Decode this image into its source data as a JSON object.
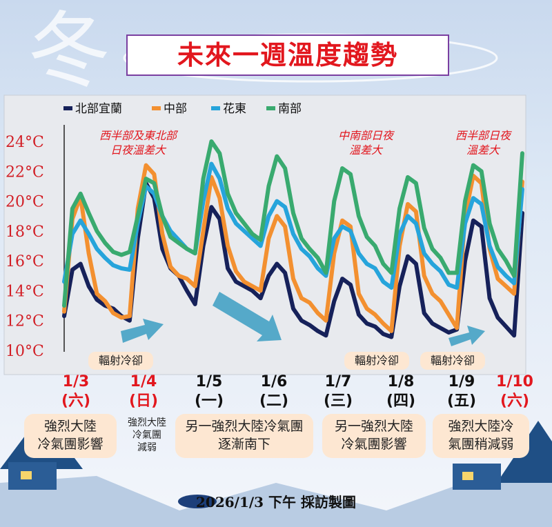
{
  "header": {
    "title": "未來一週溫度趨勢"
  },
  "chart_data": {
    "type": "line",
    "title": "未來一週溫度趨勢",
    "ylabel": "",
    "xlabel": "",
    "ylim": [
      10,
      24
    ],
    "yticks": [
      "24°C",
      "22°C",
      "20°C",
      "18°C",
      "16°C",
      "14°C",
      "12°C",
      "10°C"
    ],
    "ytick_values": [
      24,
      22,
      20,
      18,
      16,
      14,
      12,
      10
    ],
    "grid": false,
    "legend_position": "top-left",
    "x": [
      0,
      0.5,
      1,
      1.5,
      2,
      2.5,
      3,
      3.5,
      4,
      4.5,
      5,
      5.5,
      6,
      6.5,
      7,
      7.5,
      8,
      8.5,
      9,
      9.5,
      10,
      10.5,
      11,
      11.5,
      12,
      12.5,
      13,
      13.5,
      14,
      14.5,
      15,
      15.5,
      16,
      16.5,
      17,
      17.5,
      18,
      18.5,
      19,
      19.5,
      20,
      20.5,
      21,
      21.5,
      22,
      22.5,
      23,
      23.5,
      24,
      24.5,
      25,
      25.5,
      26,
      26.5,
      27,
      27.5,
      28
    ],
    "series": [
      {
        "name": "北部宜蘭",
        "color": "#16215a",
        "values": [
          12.3,
          15.4,
          15.8,
          14.3,
          13.4,
          13.0,
          12.8,
          12.3,
          12.0,
          17.5,
          21.2,
          20.2,
          16.8,
          15.5,
          15.0,
          14.0,
          13.1,
          17.0,
          19.6,
          18.8,
          15.5,
          14.6,
          14.3,
          14.0,
          13.5,
          15.0,
          15.8,
          15.2,
          12.8,
          12.0,
          11.7,
          11.3,
          11.0,
          13.3,
          14.8,
          14.4,
          12.4,
          11.8,
          11.6,
          11.1,
          10.9,
          14.3,
          16.3,
          15.8,
          12.5,
          11.8,
          11.5,
          11.2,
          11.4,
          16.0,
          18.7,
          18.3,
          13.5,
          12.2,
          11.6,
          11.0,
          19.2
        ]
      },
      {
        "name": "中部",
        "color": "#f39030",
        "values": [
          12.6,
          18.8,
          20.3,
          16.5,
          13.8,
          13.3,
          12.5,
          12.2,
          12.3,
          19.5,
          22.4,
          21.8,
          17.8,
          15.6,
          15.0,
          14.8,
          14.3,
          18.0,
          21.6,
          20.2,
          17.0,
          15.3,
          14.6,
          14.3,
          14.0,
          17.5,
          19.0,
          18.3,
          14.8,
          13.5,
          13.2,
          12.5,
          12.0,
          16.5,
          18.7,
          18.3,
          13.8,
          12.8,
          12.4,
          11.8,
          11.3,
          17.0,
          19.8,
          19.3,
          15.0,
          13.8,
          13.3,
          12.4,
          11.5,
          19.0,
          21.7,
          21.2,
          16.8,
          14.8,
          14.3,
          13.8,
          21.3
        ]
      },
      {
        "name": "花東",
        "color": "#26a4db",
        "values": [
          14.6,
          17.8,
          18.7,
          17.8,
          16.8,
          16.2,
          15.7,
          15.5,
          15.4,
          18.5,
          21.0,
          20.5,
          19.0,
          18.0,
          17.4,
          16.8,
          16.5,
          20.0,
          22.5,
          21.5,
          19.5,
          18.5,
          18.0,
          17.5,
          17.0,
          19.0,
          20.0,
          19.6,
          17.8,
          16.8,
          16.3,
          15.5,
          15.0,
          17.5,
          18.3,
          18.0,
          16.5,
          15.8,
          15.5,
          14.6,
          14.2,
          17.8,
          19.0,
          18.5,
          16.5,
          15.8,
          15.3,
          14.4,
          14.2,
          18.5,
          20.2,
          19.8,
          17.0,
          15.6,
          15.0,
          14.5,
          20.8
        ]
      },
      {
        "name": "南部",
        "color": "#39aa6f",
        "values": [
          13.0,
          19.5,
          20.5,
          19.2,
          18.0,
          17.2,
          16.6,
          16.4,
          16.6,
          19.0,
          21.5,
          21.2,
          19.0,
          17.6,
          17.2,
          16.8,
          16.5,
          21.5,
          24.0,
          23.2,
          20.5,
          19.2,
          18.5,
          17.8,
          17.4,
          21.0,
          23.0,
          22.2,
          19.2,
          17.5,
          16.8,
          16.2,
          15.2,
          20.0,
          22.2,
          21.8,
          19.0,
          17.6,
          17.0,
          15.8,
          15.2,
          19.5,
          21.6,
          21.2,
          18.2,
          16.8,
          16.2,
          15.2,
          15.2,
          20.0,
          22.4,
          22.0,
          18.5,
          16.8,
          16.0,
          15.0,
          23.2
        ]
      }
    ]
  },
  "annotations": [
    {
      "line1": "西半部及東北部",
      "line2": "日夜溫差大"
    },
    {
      "line1": "中南部日夜",
      "line2": "溫差大"
    },
    {
      "line1": "西半部日夜",
      "line2": "溫差大"
    }
  ],
  "radiative_labels": [
    "輻射冷卻",
    "輻射冷卻",
    "輻射冷卻"
  ],
  "days": [
    {
      "date": "1/3",
      "dow": "(六)",
      "color": "#e2171e"
    },
    {
      "date": "1/4",
      "dow": "(日)",
      "color": "#e2171e"
    },
    {
      "date": "1/5",
      "dow": "(一)",
      "color": "#111111"
    },
    {
      "date": "1/6",
      "dow": "(二)",
      "color": "#111111"
    },
    {
      "date": "1/7",
      "dow": "(三)",
      "color": "#111111"
    },
    {
      "date": "1/8",
      "dow": "(四)",
      "color": "#111111"
    },
    {
      "date": "1/9",
      "dow": "(五)",
      "color": "#111111"
    },
    {
      "date": "1/10",
      "dow": "(六)",
      "color": "#e2171e"
    }
  ],
  "notes": [
    {
      "line1": "強烈大陸",
      "line2": "冷氣團影響"
    },
    {
      "line1": "強烈大陸",
      "line2": "冷氣團",
      "line3": "減弱"
    },
    {
      "line1": "另一強烈大陸冷氣團",
      "line2": "逐漸南下"
    },
    {
      "line1": "另一強烈大陸",
      "line2": "冷氣團影響"
    },
    {
      "line1": "強烈大陸冷",
      "line2": "氣團稍減弱"
    }
  ],
  "footer": {
    "text": "2026/1/3 下午 採訪製圖"
  },
  "decor": {
    "watermark_char": "冬",
    "accent_red": "#e2171e",
    "note_bg": "#fde7d2"
  }
}
